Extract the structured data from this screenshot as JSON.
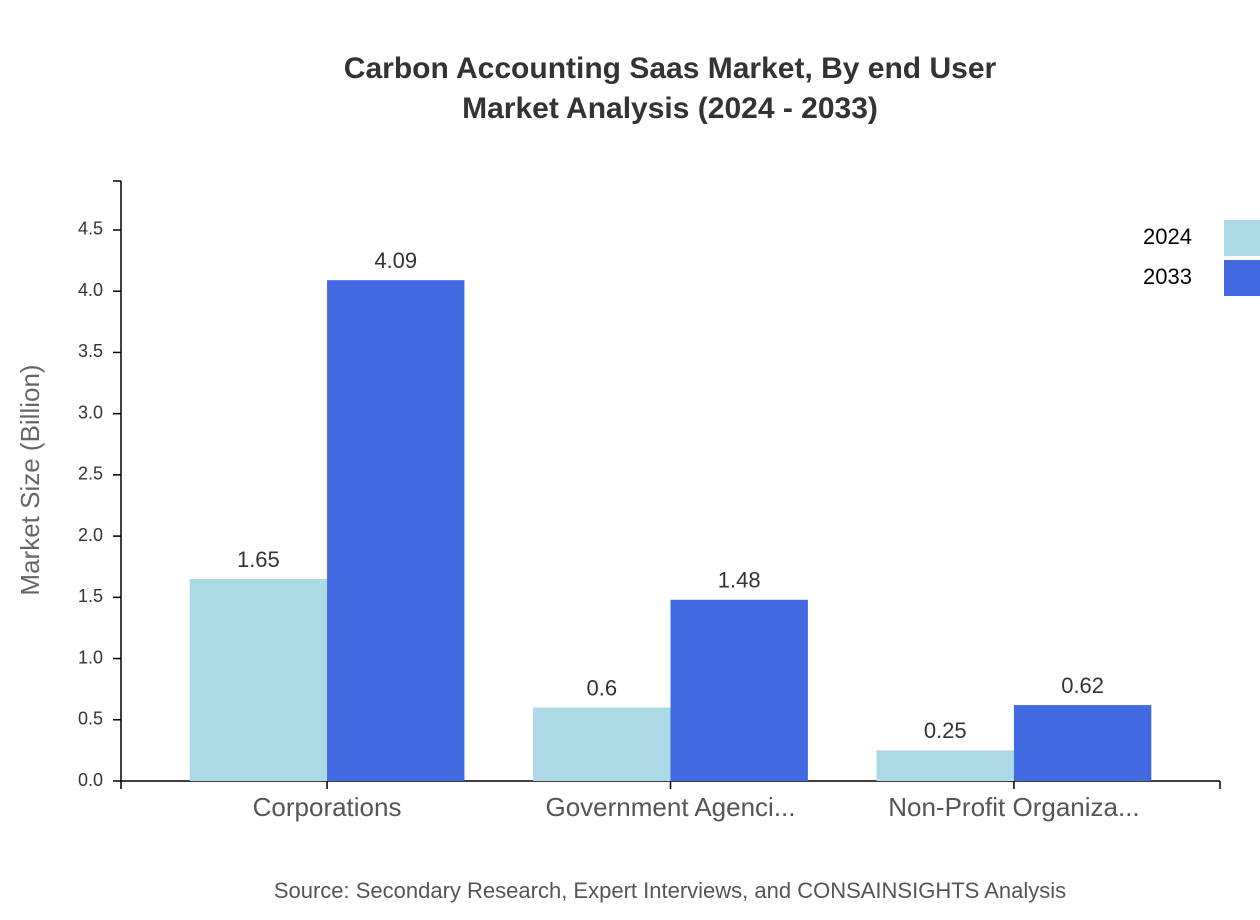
{
  "chart_data": {
    "type": "bar",
    "title": "Carbon Accounting Saas Market, By end User",
    "subtitle": "Market Analysis (2024 - 2033)",
    "y_label": "Market Size (Billion)",
    "source": "Source: Secondary Research, Expert Interviews, and CONSAINSIGHTS Analysis",
    "categories": [
      "Corporations",
      "Government Agenci...",
      "Non-Profit Organiza..."
    ],
    "series": [
      {
        "name": "2024",
        "color": "#add8e6",
        "values": [
          1.65,
          0.6,
          0.25
        ]
      },
      {
        "name": "2033",
        "color": "#4169e1",
        "values": [
          4.09,
          1.48,
          0.62
        ]
      }
    ],
    "ylim": [
      0,
      4.9
    ],
    "yticks": [
      {
        "value": 0,
        "label": "0.0"
      },
      0.5,
      {
        "value": 1,
        "label": "1.0"
      },
      1.5,
      {
        "value": 2,
        "label": "2.0"
      },
      2.5,
      {
        "value": 3,
        "label": "3.0"
      },
      3.5,
      {
        "value": 4,
        "label": "4.0"
      },
      4.5
    ],
    "legend": "top-right"
  }
}
